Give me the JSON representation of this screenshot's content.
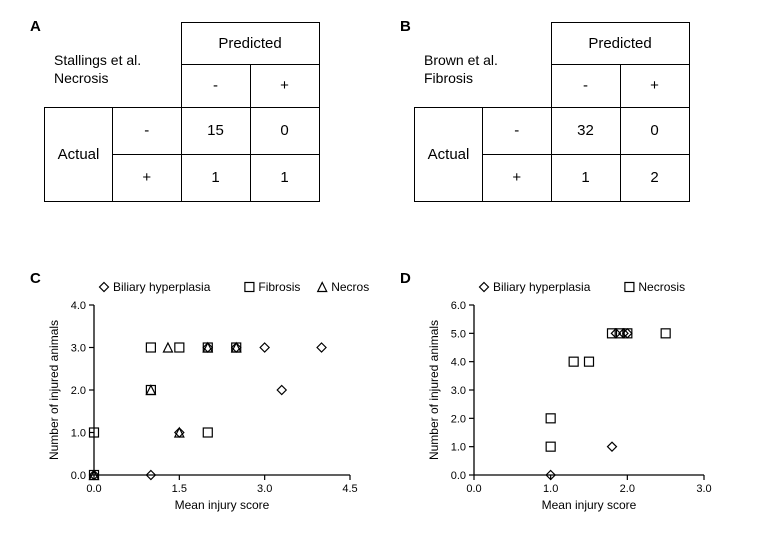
{
  "panelA": {
    "label": "A",
    "caption_line1": "Stallings et al.",
    "caption_line2": "Necrosis",
    "table": {
      "predicted_header": "Predicted",
      "actual_header": "Actual",
      "col_minus": "-",
      "col_plus": "+",
      "row_minus": "-",
      "row_plus": "+",
      "cells": {
        "mm": "15",
        "mp": "0",
        "pm": "1",
        "pp": "1"
      }
    }
  },
  "panelB": {
    "label": "B",
    "caption_line1": "Brown et al.",
    "caption_line2": "Fibrosis",
    "table": {
      "predicted_header": "Predicted",
      "actual_header": "Actual",
      "col_minus": "-",
      "col_plus": "+",
      "row_minus": "-",
      "row_plus": "+",
      "cells": {
        "mm": "32",
        "mp": "0",
        "pm": "1",
        "pp": "2"
      }
    }
  },
  "panelC": {
    "label": "C",
    "chart": {
      "type": "scatter",
      "xlabel": "Mean injury score",
      "ylabel": "Number of injured animals",
      "xlim": [
        0,
        4.5
      ],
      "xtick_step": 1.5,
      "ylim": [
        0,
        4.0
      ],
      "ytick_step": 1.0,
      "xtick_decimals": 1,
      "ytick_decimals": 1,
      "background_color": "#ffffff",
      "axis_color": "#000000",
      "label_fontsize": 12,
      "tick_fontsize": 11,
      "marker_size": 9,
      "legend": [
        {
          "marker": "diamond",
          "label": "Biliary hyperplasia"
        },
        {
          "marker": "square",
          "label": "Fibrosis"
        },
        {
          "marker": "triangle",
          "label": "Necrosis"
        }
      ],
      "series": {
        "diamond": [
          [
            0,
            0
          ],
          [
            1.0,
            0
          ],
          [
            1.5,
            1
          ],
          [
            2.0,
            3
          ],
          [
            2.5,
            3
          ],
          [
            3.0,
            3
          ],
          [
            3.3,
            2
          ],
          [
            4.0,
            3
          ]
        ],
        "square": [
          [
            0,
            0
          ],
          [
            0,
            1
          ],
          [
            1.0,
            2
          ],
          [
            1.0,
            3
          ],
          [
            1.5,
            3
          ],
          [
            2.0,
            1
          ],
          [
            2.0,
            3
          ],
          [
            2.5,
            3
          ]
        ],
        "triangle": [
          [
            0,
            0
          ],
          [
            1.0,
            2
          ],
          [
            1.3,
            3
          ],
          [
            1.5,
            1
          ],
          [
            2.0,
            3
          ],
          [
            2.5,
            3
          ]
        ]
      }
    }
  },
  "panelD": {
    "label": "D",
    "chart": {
      "type": "scatter",
      "xlabel": "Mean injury score",
      "ylabel": "Number of injured animals",
      "xlim": [
        0,
        3.0
      ],
      "xtick_step": 1.0,
      "ylim": [
        0,
        6.0
      ],
      "ytick_step": 1.0,
      "xtick_decimals": 1,
      "ytick_decimals": 1,
      "background_color": "#ffffff",
      "axis_color": "#000000",
      "label_fontsize": 12,
      "tick_fontsize": 11,
      "marker_size": 9,
      "legend": [
        {
          "marker": "diamond",
          "label": "Biliary hyperplasia"
        },
        {
          "marker": "square",
          "label": "Necrosis"
        }
      ],
      "series": {
        "diamond": [
          [
            1.0,
            0
          ],
          [
            1.8,
            1
          ],
          [
            1.85,
            5
          ],
          [
            1.95,
            5
          ],
          [
            2.0,
            5
          ]
        ],
        "square": [
          [
            1.0,
            1
          ],
          [
            1.0,
            2
          ],
          [
            1.3,
            4
          ],
          [
            1.5,
            4
          ],
          [
            1.8,
            5
          ],
          [
            1.9,
            5
          ],
          [
            2.0,
            5
          ],
          [
            2.5,
            5
          ]
        ]
      }
    }
  }
}
